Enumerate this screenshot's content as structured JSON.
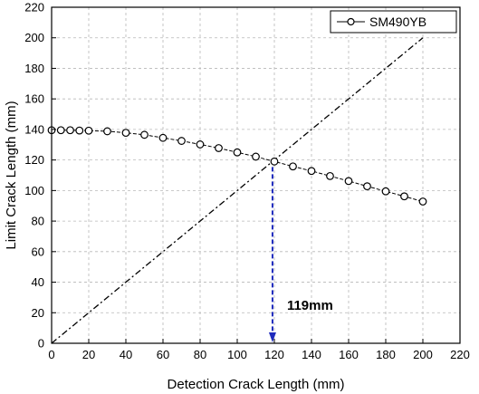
{
  "chart_data": {
    "type": "line",
    "xlabel": "Detection Crack Length (mm)",
    "ylabel": "Limit Crack Length (mm)",
    "xlim": [
      0,
      220
    ],
    "ylim": [
      0,
      220
    ],
    "x_ticks": [
      0,
      20,
      40,
      60,
      80,
      100,
      120,
      140,
      160,
      180,
      200,
      220
    ],
    "y_ticks": [
      0,
      20,
      40,
      60,
      80,
      100,
      120,
      140,
      160,
      180,
      200,
      220
    ],
    "grid": true,
    "legend_position": "top-right",
    "series": [
      {
        "name": "SM490YB",
        "marker": "open-circle",
        "line_style": "dashed",
        "color": "#000000",
        "x": [
          0,
          5,
          10,
          15,
          20,
          30,
          40,
          50,
          60,
          70,
          80,
          90,
          100,
          110,
          120,
          130,
          140,
          150,
          160,
          170,
          180,
          190,
          200
        ],
        "y": [
          139.5,
          139.5,
          139.5,
          139.3,
          139.2,
          138.8,
          137.8,
          136.5,
          134.5,
          132.5,
          130.2,
          127.8,
          125.0,
          122.2,
          119.0,
          115.8,
          112.8,
          109.5,
          106.2,
          102.8,
          99.5,
          96.2,
          92.8
        ]
      }
    ],
    "reference_line": {
      "style": "dash-dot",
      "color": "#000000",
      "x": [
        0,
        200
      ],
      "y": [
        0,
        200
      ]
    },
    "intersection": {
      "x": 119,
      "y": 119,
      "arrow_color": "#1f2bbd",
      "label": "119mm"
    }
  }
}
